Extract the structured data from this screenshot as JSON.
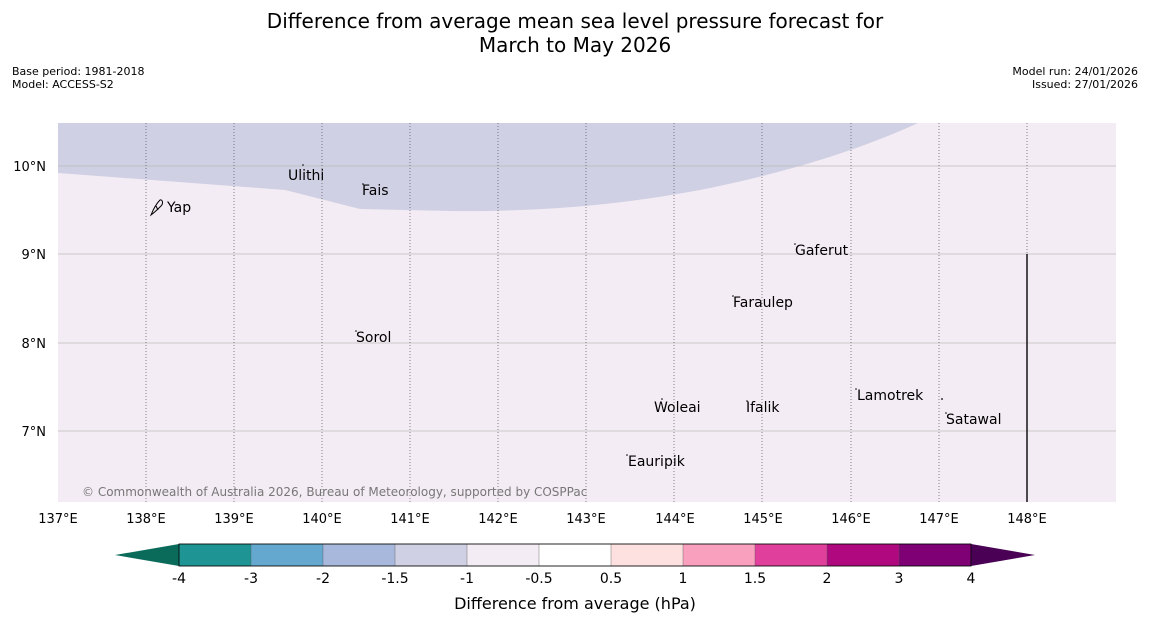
{
  "title_line1": "Difference from average mean sea level pressure forecast for",
  "title_line2": "March to May 2026",
  "base_period": "Base period: 1981-2018",
  "model": "Model: ACCESS-S2",
  "model_run": "Model run: 24/01/2026",
  "issued": "Issued: 27/01/2026",
  "copyright": "© Commonwealth of Australia 2026, Bureau of Meteorology, supported by COSPPac",
  "map": {
    "lon_range": [
      137,
      149
    ],
    "lat_range": [
      6.2,
      10.5
    ],
    "lon_ticks": [
      "137°E",
      "138°E",
      "139°E",
      "140°E",
      "141°E",
      "142°E",
      "143°E",
      "144°E",
      "145°E",
      "146°E",
      "147°E",
      "148°E"
    ],
    "lat_ticks": [
      "10°N",
      "9°N",
      "8°N",
      "7°N"
    ],
    "fill_colors": {
      "minus_1_5_to_minus_1": "#d0d0e4",
      "minus_1_to_minus_0_5": "#f4ecf4"
    },
    "places": [
      {
        "name": "Ulithi"
      },
      {
        "name": "Fais"
      },
      {
        "name": "Yap"
      },
      {
        "name": "Gaferut"
      },
      {
        "name": "Faraulep"
      },
      {
        "name": "Sorol"
      },
      {
        "name": "Lamotrek"
      },
      {
        "name": "Woleai"
      },
      {
        "name": "Ifalik"
      },
      {
        "name": "Satawal"
      },
      {
        "name": "Eauripik"
      }
    ]
  },
  "colorbar": {
    "title": "Difference from average (hPa)",
    "tick_labels": [
      "-4",
      "-3",
      "-2",
      "-1.5",
      "-1",
      "-0.5",
      "0.5",
      "1",
      "1.5",
      "2",
      "3",
      "4"
    ],
    "under_color": "#0b6b5a",
    "over_color": "#4a0055",
    "bin_colors": [
      "#1e9494",
      "#64a8d0",
      "#a8b8dc",
      "#d0d0e4",
      "#f4ecf4",
      "#ffffff",
      "#fde0e0",
      "#f8a0be",
      "#e0409c",
      "#b0087e",
      "#7e0074"
    ]
  }
}
